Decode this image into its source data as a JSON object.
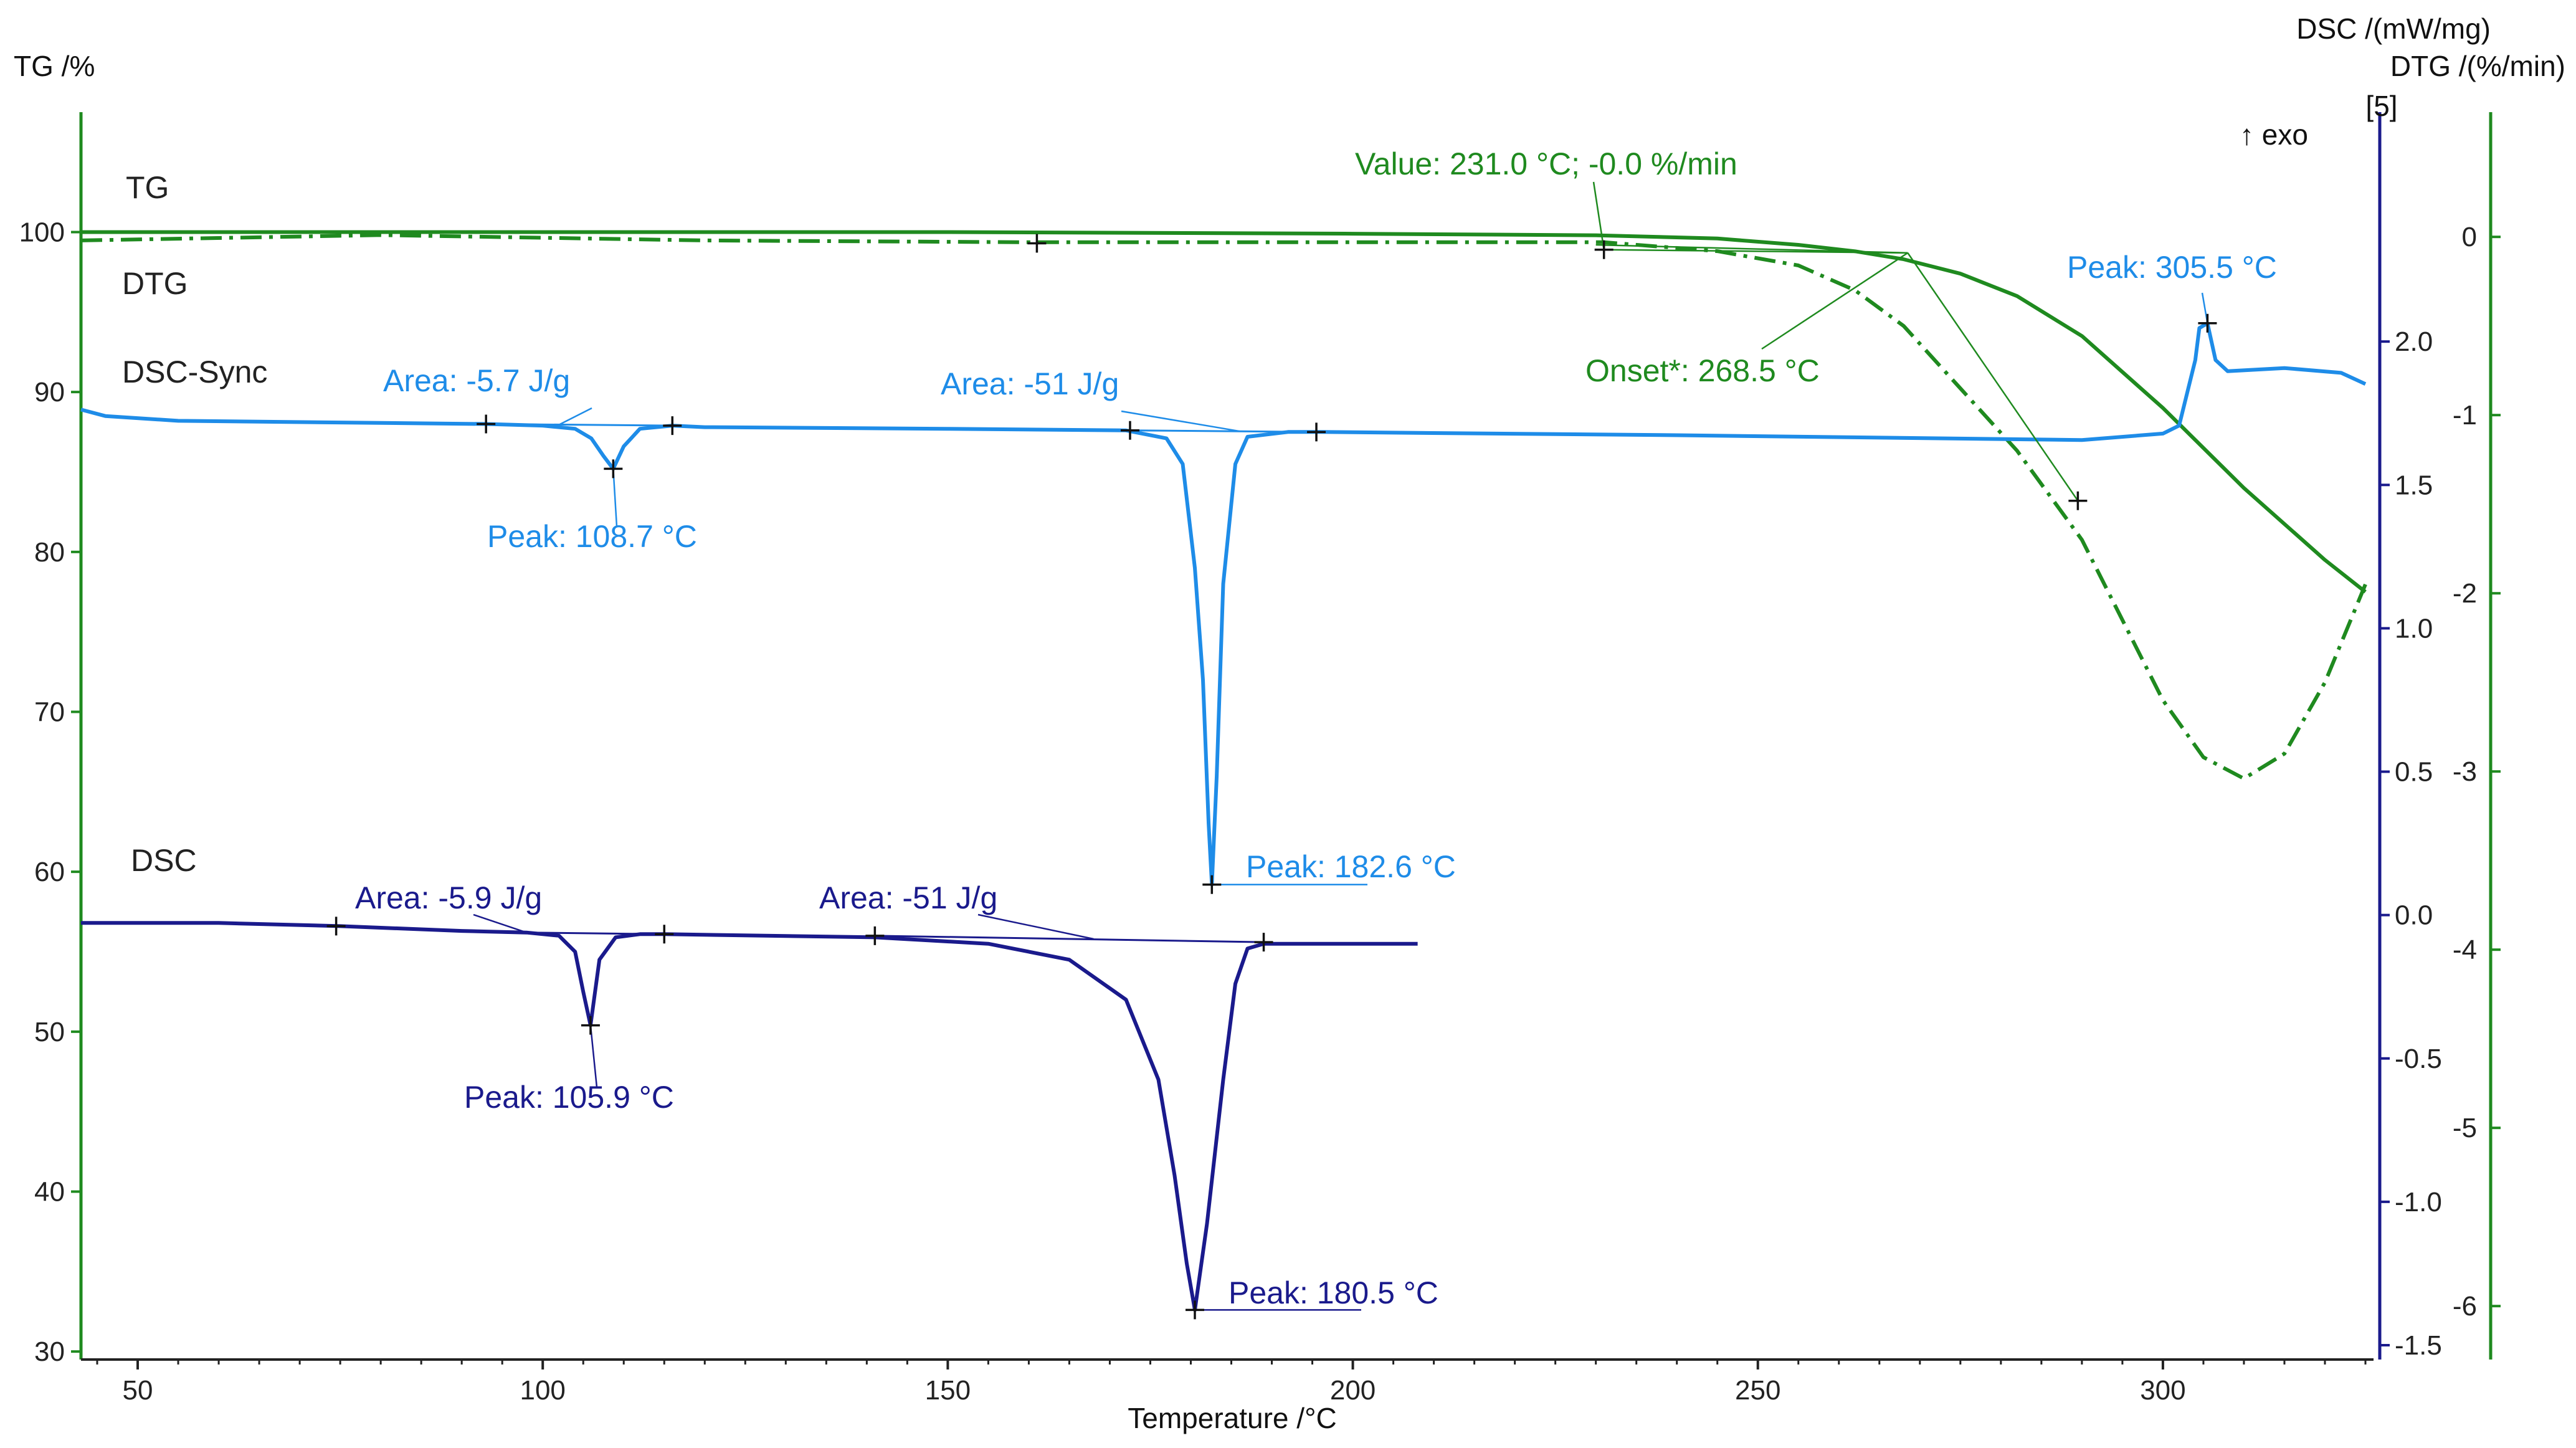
{
  "chart_data": {
    "type": "line",
    "title": "",
    "xlabel": "Temperature /°C",
    "xlim": [
      43,
      326
    ],
    "xticks": [
      50,
      100,
      150,
      200,
      250,
      300
    ],
    "axes": {
      "tg": {
        "label": "TG /%",
        "lim": [
          29.5,
          107.5
        ],
        "ticks": [
          30,
          40,
          50,
          60,
          70,
          80,
          90,
          100
        ],
        "color": "#222222"
      },
      "dsc": {
        "label": "DSC /(mW/mg)",
        "unit_marker": "[5]",
        "exo": "↑ exo",
        "lim": [
          -1.55,
          2.8
        ],
        "ticks": [
          -1.5,
          -1.0,
          -0.5,
          0.0,
          0.5,
          1.0,
          1.5,
          2.0
        ],
        "color": "#1a1a8c"
      },
      "dtg": {
        "label": "DTG /(%/min)",
        "lim": [
          -6.3,
          0.7
        ],
        "ticks": [
          -6,
          -5,
          -4,
          -3,
          -2,
          -1,
          0
        ],
        "color": "#1f8a1f"
      }
    },
    "series": [
      {
        "name": "TG",
        "axis": "tg",
        "color": "#1f8a1f",
        "style": "solid",
        "x": [
          43,
          100,
          150,
          200,
          230,
          245,
          255,
          262,
          268,
          275,
          282,
          290,
          300,
          310,
          320,
          325
        ],
        "y": [
          100,
          100,
          100,
          99.9,
          99.8,
          99.6,
          99.2,
          98.8,
          98.3,
          97.4,
          96,
          93.5,
          89,
          84,
          79.5,
          77.5
        ]
      },
      {
        "name": "DTG",
        "axis": "dtg",
        "color": "#1f8a1f",
        "style": "dashdot",
        "x": [
          43,
          80,
          120,
          160,
          200,
          231,
          245,
          255,
          262,
          268,
          275,
          282,
          290,
          300,
          305,
          310,
          315,
          320,
          325
        ],
        "y": [
          -0.02,
          0.01,
          -0.02,
          -0.03,
          -0.03,
          -0.03,
          -0.08,
          -0.16,
          -0.3,
          -0.5,
          -0.85,
          -1.2,
          -1.7,
          -2.6,
          -2.92,
          -3.04,
          -2.9,
          -2.5,
          -1.95
        ]
      },
      {
        "name": "DSC-Sync",
        "axis": "tg",
        "color": "#1e8ce8",
        "style": "solid",
        "x": [
          43,
          46,
          55,
          93,
          100,
          104,
          106,
          107.5,
          108.7,
          110,
          112,
          116,
          120,
          150,
          172,
          177,
          179,
          180.5,
          181.5,
          182.2,
          182.6,
          183.2,
          184,
          185.5,
          187,
          192,
          196,
          240,
          290,
          300,
          302,
          304,
          304.5,
          305.5,
          306.5,
          308,
          315,
          322,
          325
        ],
        "y": [
          88.9,
          88.5,
          88.2,
          88.0,
          87.9,
          87.7,
          87.1,
          86.0,
          85.2,
          86.6,
          87.7,
          87.9,
          87.8,
          87.7,
          87.6,
          87.1,
          85.5,
          79,
          72,
          63,
          59.2,
          66,
          78,
          85.5,
          87.2,
          87.5,
          87.5,
          87.3,
          87.0,
          87.4,
          87.9,
          92,
          94,
          94.3,
          92,
          91.3,
          91.5,
          91.2,
          90.5
        ]
      },
      {
        "name": "DSC",
        "axis": "tg",
        "color": "#1a1a8c",
        "style": "solid",
        "x": [
          43,
          60,
          75,
          90,
          98,
          102,
          104,
          105,
          105.9,
          107,
          109,
          112,
          115,
          141,
          155,
          165,
          172,
          176,
          178,
          179.5,
          180.5,
          182,
          184,
          185.5,
          187,
          189,
          200,
          208
        ],
        "y": [
          56.8,
          56.8,
          56.6,
          56.3,
          56.2,
          56.0,
          55.0,
          52.5,
          50.4,
          54.5,
          55.9,
          56.1,
          56.1,
          55.9,
          55.5,
          54.5,
          52,
          47,
          41,
          35.5,
          32.6,
          38,
          47,
          53,
          55.2,
          55.5,
          55.5,
          55.5
        ]
      }
    ],
    "baselines": [
      {
        "axis": "tg",
        "color": "#1e8ce8",
        "x": [
          93,
          116
        ],
        "y": [
          88.0,
          87.9
        ]
      },
      {
        "axis": "tg",
        "color": "#1e8ce8",
        "x": [
          172.5,
          195.5
        ],
        "y": [
          87.6,
          87.5
        ]
      },
      {
        "axis": "tg",
        "color": "#1a1a8c",
        "x": [
          98,
          115
        ],
        "y": [
          56.2,
          56.1
        ]
      },
      {
        "axis": "tg",
        "color": "#1a1a8c",
        "x": [
          141,
          189
        ],
        "y": [
          56.0,
          55.6
        ]
      }
    ],
    "markers": [
      {
        "axis": "tg",
        "x": 93,
        "y": 88.0
      },
      {
        "axis": "tg",
        "x": 108.7,
        "y": 85.2
      },
      {
        "axis": "tg",
        "x": 116,
        "y": 87.9
      },
      {
        "axis": "tg",
        "x": 172.5,
        "y": 87.6
      },
      {
        "axis": "tg",
        "x": 182.6,
        "y": 59.2
      },
      {
        "axis": "tg",
        "x": 195.5,
        "y": 87.5
      },
      {
        "axis": "tg",
        "x": 305.5,
        "y": 94.3
      },
      {
        "axis": "tg",
        "x": 74.5,
        "y": 56.6
      },
      {
        "axis": "tg",
        "x": 105.9,
        "y": 50.4
      },
      {
        "axis": "tg",
        "x": 115,
        "y": 56.1
      },
      {
        "axis": "tg",
        "x": 141,
        "y": 56.0
      },
      {
        "axis": "tg",
        "x": 180.5,
        "y": 32.6
      },
      {
        "axis": "tg",
        "x": 189,
        "y": 55.6
      },
      {
        "axis": "tg",
        "x": 161,
        "y": 99.3
      },
      {
        "axis": "tg",
        "x": 231,
        "y": 98.9
      },
      {
        "axis": "tg",
        "x": 289.5,
        "y": 83.2
      }
    ],
    "curve_labels": [
      {
        "text": "TG",
        "color": "#222222"
      },
      {
        "text": "DTG",
        "color": "#222222"
      },
      {
        "text": "DSC-Sync",
        "color": "#222222"
      },
      {
        "text": "DSC",
        "color": "#222222"
      }
    ],
    "annotations": [
      {
        "text": "Value: 231.0 °C; -0.0 %/min",
        "color": "#1f8a1f"
      },
      {
        "text": "Onset*: 268.5 °C",
        "color": "#1f8a1f"
      },
      {
        "text": "Peak: 305.5 °C",
        "color": "#1e8ce8"
      },
      {
        "text": "Area: -5.7 J/g",
        "color": "#1e8ce8"
      },
      {
        "text": "Peak: 108.7 °C",
        "color": "#1e8ce8"
      },
      {
        "text": "Area: -51 J/g",
        "color": "#1e8ce8"
      },
      {
        "text": "Peak: 182.6 °C",
        "color": "#1e8ce8"
      },
      {
        "text": "Area: -5.9 J/g",
        "color": "#1a1a8c"
      },
      {
        "text": "Peak: 105.9 °C",
        "color": "#1a1a8c"
      },
      {
        "text": "Area: -51 J/g",
        "color": "#1a1a8c"
      },
      {
        "text": "Peak: 180.5 °C",
        "color": "#1a1a8c"
      }
    ]
  }
}
